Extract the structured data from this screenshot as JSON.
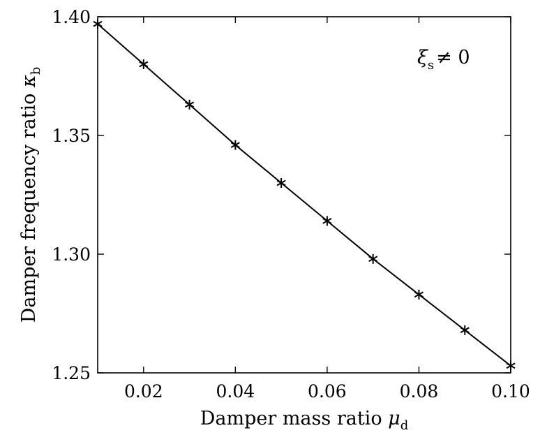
{
  "chart_data": {
    "type": "line",
    "title": "",
    "xlabel": "Damper mass ratio",
    "xlabel_symbol": "μ",
    "xlabel_sub": "d",
    "ylabel": "Damper frequency ratio",
    "ylabel_symbol": "κ",
    "ylabel_sub": "b",
    "xlim": [
      0.01,
      0.1
    ],
    "ylim": [
      1.25,
      1.4
    ],
    "xticks": [
      0.02,
      0.04,
      0.06,
      0.08,
      0.1
    ],
    "xtick_labels": [
      "0.02",
      "0.04",
      "0.06",
      "0.08",
      "0.10"
    ],
    "yticks": [
      1.25,
      1.3,
      1.35,
      1.4
    ],
    "ytick_labels": [
      "1.25",
      "1.30",
      "1.35",
      "1.40"
    ],
    "grid": false,
    "annotation": {
      "symbol": "ξ",
      "sub": "s",
      "rest": "≠ 0",
      "position": "top-right"
    },
    "series": [
      {
        "marker": "asterisk",
        "color": "#000000",
        "x": [
          0.01,
          0.02,
          0.03,
          0.04,
          0.05,
          0.06,
          0.07,
          0.08,
          0.09,
          0.1
        ],
        "y": [
          1.397,
          1.38,
          1.363,
          1.346,
          1.33,
          1.314,
          1.298,
          1.283,
          1.268,
          1.253
        ]
      }
    ]
  }
}
